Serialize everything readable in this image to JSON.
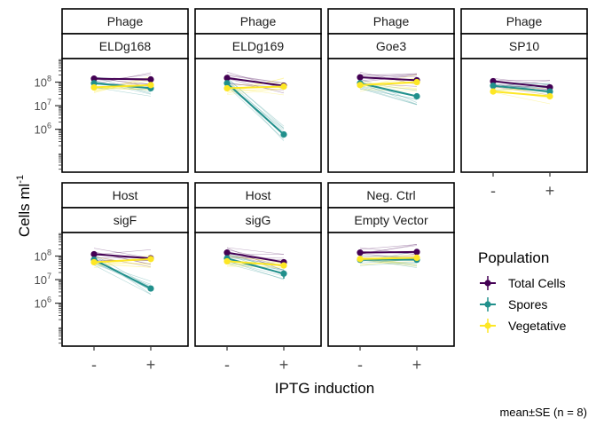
{
  "chart_data": {
    "type": "line",
    "xlabel": "IPTG induction",
    "ylabel": "Cells ml",
    "ylabel_superscript": "-1",
    "y_scale": "log10",
    "ylim": [
      15000,
      1000000000
    ],
    "x_categories": [
      "-",
      "+"
    ],
    "y_ticks": [
      {
        "value": 1000000,
        "label": "10",
        "exp": "6"
      },
      {
        "value": 10000000,
        "label": "10",
        "exp": "7"
      },
      {
        "value": 100000000,
        "label": "10",
        "exp": "8"
      }
    ],
    "caption": "mean±SE (n = 8)",
    "legend": {
      "title": "Population",
      "position": "right",
      "entries": [
        {
          "name": "Total Cells",
          "color": "#440154"
        },
        {
          "name": "Spores",
          "color": "#21908C"
        },
        {
          "name": "Vegetative",
          "color": "#FDE725"
        }
      ]
    },
    "panels": [
      {
        "group": "Phage",
        "strain": "ELDg168",
        "series": [
          {
            "name": "Total Cells",
            "values": [
              140000000,
              130000000
            ],
            "se": [
              20000000,
              15000000
            ]
          },
          {
            "name": "Spores",
            "values": [
              90000000,
              55000000
            ],
            "se": [
              12000000,
              8000000
            ]
          },
          {
            "name": "Vegetative",
            "values": [
              60000000,
              75000000
            ],
            "se": [
              10000000,
              10000000
            ]
          }
        ]
      },
      {
        "group": "Phage",
        "strain": "ELDg169",
        "series": [
          {
            "name": "Total Cells",
            "values": [
              150000000,
              70000000
            ],
            "se": [
              20000000,
              10000000
            ]
          },
          {
            "name": "Spores",
            "values": [
              90000000,
              600000
            ],
            "se": [
              15000000,
              120000
            ]
          },
          {
            "name": "Vegetative",
            "values": [
              55000000,
              65000000
            ],
            "se": [
              10000000,
              10000000
            ]
          }
        ]
      },
      {
        "group": "Phage",
        "strain": "Goe3",
        "series": [
          {
            "name": "Total Cells",
            "values": [
              160000000,
              120000000
            ],
            "se": [
              20000000,
              15000000
            ]
          },
          {
            "name": "Spores",
            "values": [
              90000000,
              25000000
            ],
            "se": [
              12000000,
              4000000
            ]
          },
          {
            "name": "Vegetative",
            "values": [
              75000000,
              100000000
            ],
            "se": [
              10000000,
              12000000
            ]
          }
        ]
      },
      {
        "group": "Phage",
        "strain": "SP10",
        "series": [
          {
            "name": "Total Cells",
            "values": [
              110000000,
              60000000
            ],
            "se": [
              15000000,
              8000000
            ]
          },
          {
            "name": "Spores",
            "values": [
              70000000,
              40000000
            ],
            "se": [
              10000000,
              5000000
            ]
          },
          {
            "name": "Vegetative",
            "values": [
              40000000,
              25000000
            ],
            "se": [
              6000000,
              4000000
            ]
          }
        ]
      },
      {
        "group": "Host",
        "strain": "sigF",
        "series": [
          {
            "name": "Total Cells",
            "values": [
              120000000,
              80000000
            ],
            "se": [
              15000000,
              12000000
            ]
          },
          {
            "name": "Spores",
            "values": [
              70000000,
              4200000
            ],
            "se": [
              10000000,
              800000
            ]
          },
          {
            "name": "Vegetative",
            "values": [
              55000000,
              75000000
            ],
            "se": [
              8000000,
              10000000
            ]
          }
        ]
      },
      {
        "group": "Host",
        "strain": "sigG",
        "series": [
          {
            "name": "Total Cells",
            "values": [
              140000000,
              55000000
            ],
            "se": [
              20000000,
              8000000
            ]
          },
          {
            "name": "Spores",
            "values": [
              80000000,
              18000000
            ],
            "se": [
              12000000,
              7000000
            ]
          },
          {
            "name": "Vegetative",
            "values": [
              60000000,
              40000000
            ],
            "se": [
              8000000,
              6000000
            ]
          }
        ]
      },
      {
        "group": "Neg. Ctrl",
        "strain": "Empty Vector",
        "series": [
          {
            "name": "Total Cells",
            "values": [
              140000000,
              150000000
            ],
            "se": [
              15000000,
              15000000
            ]
          },
          {
            "name": "Spores",
            "values": [
              70000000,
              70000000
            ],
            "se": [
              8000000,
              8000000
            ]
          },
          {
            "name": "Vegetative",
            "values": [
              75000000,
              85000000
            ],
            "se": [
              8000000,
              8000000
            ]
          }
        ]
      }
    ]
  }
}
